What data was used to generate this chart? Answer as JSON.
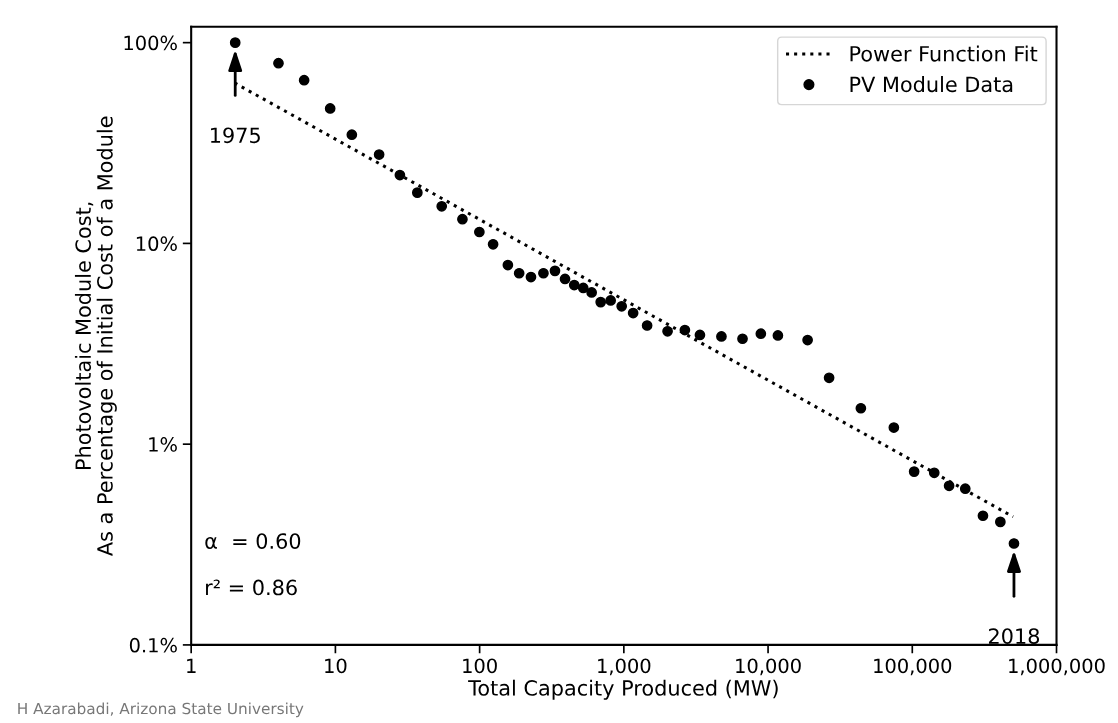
{
  "chart_data": {
    "type": "scatter",
    "xlabel": "Total Capacity Produced (MW)",
    "ylabel": "Photovoltaic Module Cost,\nAs a Percentage of Initial Cost of a Module",
    "log": "xy",
    "xlim": [
      1,
      1000000
    ],
    "xticks": [
      1,
      10,
      100,
      {
        "value": 1000,
        "label": "1,000"
      },
      {
        "value": 10000,
        "label": "10,000"
      },
      {
        "value": 100000,
        "label": "100,000"
      },
      {
        "value": 1000000,
        "label": "1,000,000"
      }
    ],
    "ylim": [
      0.1,
      120
    ],
    "yticks": [
      {
        "value": 0.1,
        "label": "0.1%"
      },
      {
        "value": 1,
        "label": "1%"
      },
      {
        "value": 10,
        "label": "10%"
      },
      {
        "value": 100,
        "label": "100%"
      }
    ],
    "grid": false,
    "legend": "top right",
    "series": [
      {
        "name": "Power Function Fit",
        "type": "line",
        "color": "#000000",
        "line_style": "dotted",
        "marker": "none",
        "x": [
          2,
          500000
        ],
        "values": [
          63,
          0.435
        ]
      },
      {
        "name": "PV Module Data",
        "type": "scatter",
        "color": "#000000",
        "marker": "circle",
        "x": [
          2.02,
          4.03,
          6.07,
          9.2,
          13.0,
          20.1,
          28,
          37,
          54.6,
          76,
          99.6,
          124,
          157,
          188,
          227,
          277,
          333,
          391,
          453,
          523,
          598,
          691,
          810,
          966,
          1160,
          1450,
          2010,
          2650,
          3370,
          4750,
          6650,
          8910,
          11700,
          18800,
          26500,
          44000,
          74500,
          103000,
          142000,
          180000,
          233000,
          309000,
          408000,
          507000
        ],
        "values": [
          100,
          79,
          65,
          47,
          34.8,
          27.7,
          21.9,
          17.9,
          15.3,
          13.2,
          11.4,
          9.9,
          7.8,
          7.1,
          6.8,
          7.1,
          7.3,
          6.65,
          6.2,
          6.0,
          5.7,
          5.1,
          5.2,
          4.86,
          4.5,
          3.9,
          3.65,
          3.7,
          3.5,
          3.44,
          3.35,
          3.55,
          3.48,
          3.3,
          2.14,
          1.51,
          1.21,
          0.73,
          0.72,
          0.62,
          0.6,
          0.44,
          0.41,
          0.32
        ]
      }
    ],
    "annotations": [
      "1975",
      "2018",
      "α  = 0.60",
      "r² = 0.86",
      "H Azarabadi, Arizona State University"
    ]
  }
}
